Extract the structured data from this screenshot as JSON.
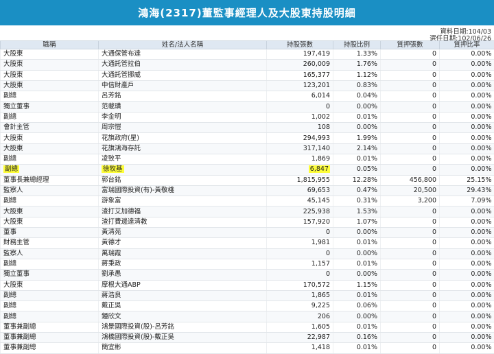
{
  "page": {
    "title": "鴻海(2317)董監事經理人及大股東持股明細",
    "data_date": "資料日期:104/03",
    "appointed_date": "選任日期:102/06/26"
  },
  "table": {
    "headers": [
      "職稱",
      "姓名/法人名稱",
      "持股張數",
      "持股比例",
      "質押張數",
      "質押比率"
    ],
    "highlight_row": 11,
    "rows": [
      [
        "大股東",
        "大通保管布達",
        "197,419",
        "1.33%",
        "0",
        "0.00%"
      ],
      [
        "大股東",
        "大通託管拉伯",
        "260,009",
        "1.76%",
        "0",
        "0.00%"
      ],
      [
        "大股東",
        "大通託管挪威",
        "165,377",
        "1.12%",
        "0",
        "0.00%"
      ],
      [
        "大股東",
        "中信財產戶",
        "123,201",
        "0.83%",
        "0",
        "0.00%"
      ],
      [
        "副總",
        "呂芳銘",
        "6,014",
        "0.04%",
        "0",
        "0.00%"
      ],
      [
        "獨立董事",
        "范載璜",
        "0",
        "0.00%",
        "0",
        "0.00%"
      ],
      [
        "副總",
        "李金明",
        "1,002",
        "0.01%",
        "0",
        "0.00%"
      ],
      [
        "會計主管",
        "周宗愷",
        "108",
        "0.00%",
        "0",
        "0.00%"
      ],
      [
        "大股東",
        "花旗政府(星)",
        "294,993",
        "1.99%",
        "0",
        "0.00%"
      ],
      [
        "大股東",
        "花旗鴻海存託",
        "317,140",
        "2.14%",
        "0",
        "0.00%"
      ],
      [
        "副總",
        "凌致平",
        "1,869",
        "0.01%",
        "0",
        "0.00%"
      ],
      [
        "副總",
        "徐牧基",
        "6,847",
        "0.05%",
        "0",
        "0.00%"
      ],
      [
        "董事長兼總經理",
        "郭台銘",
        "1,815,955",
        "12.28%",
        "456,800",
        "25.15%"
      ],
      [
        "監察人",
        "富瑞國際投資(有)-黃敬棧",
        "69,653",
        "0.47%",
        "20,500",
        "29.43%"
      ],
      [
        "副總",
        "游象富",
        "45,145",
        "0.31%",
        "3,200",
        "7.09%"
      ],
      [
        "大股東",
        "渣打艾加德福",
        "225,938",
        "1.53%",
        "0",
        "0.00%"
      ],
      [
        "大股東",
        "渣打費邊達清教",
        "157,920",
        "1.07%",
        "0",
        "0.00%"
      ],
      [
        "董事",
        "黃清苑",
        "0",
        "0.00%",
        "0",
        "0.00%"
      ],
      [
        "財務主管",
        "黃德才",
        "1,981",
        "0.01%",
        "0",
        "0.00%"
      ],
      [
        "監察人",
        "萬瑞霞",
        "0",
        "0.00%",
        "0",
        "0.00%"
      ],
      [
        "副總",
        "蔣秉政",
        "1,157",
        "0.01%",
        "0",
        "0.00%"
      ],
      [
        "獨立董事",
        "劉承愚",
        "0",
        "0.00%",
        "0",
        "0.00%"
      ],
      [
        "大股東",
        "摩根大通ABP",
        "170,572",
        "1.15%",
        "0",
        "0.00%"
      ],
      [
        "副總",
        "蔣浩良",
        "1,865",
        "0.01%",
        "0",
        "0.00%"
      ],
      [
        "副總",
        "戴正吳",
        "9,225",
        "0.06%",
        "0",
        "0.00%"
      ],
      [
        "副總",
        "鍾欣文",
        "206",
        "0.00%",
        "0",
        "0.00%"
      ],
      [
        "董事兼副總",
        "鴻景國際投資(股)-呂芳銘",
        "1,605",
        "0.01%",
        "0",
        "0.00%"
      ],
      [
        "董事兼副總",
        "鴻橋國際投資(股)-戴正吳",
        "22,987",
        "0.16%",
        "0",
        "0.00%"
      ],
      [
        "董事兼副總",
        "簡宜彬",
        "1,418",
        "0.01%",
        "0",
        "0.00%"
      ]
    ]
  },
  "colors": {
    "title_bg": "#1a8fc4",
    "header_bg": "#dfe8f2",
    "highlight": "#fdfd3a"
  }
}
